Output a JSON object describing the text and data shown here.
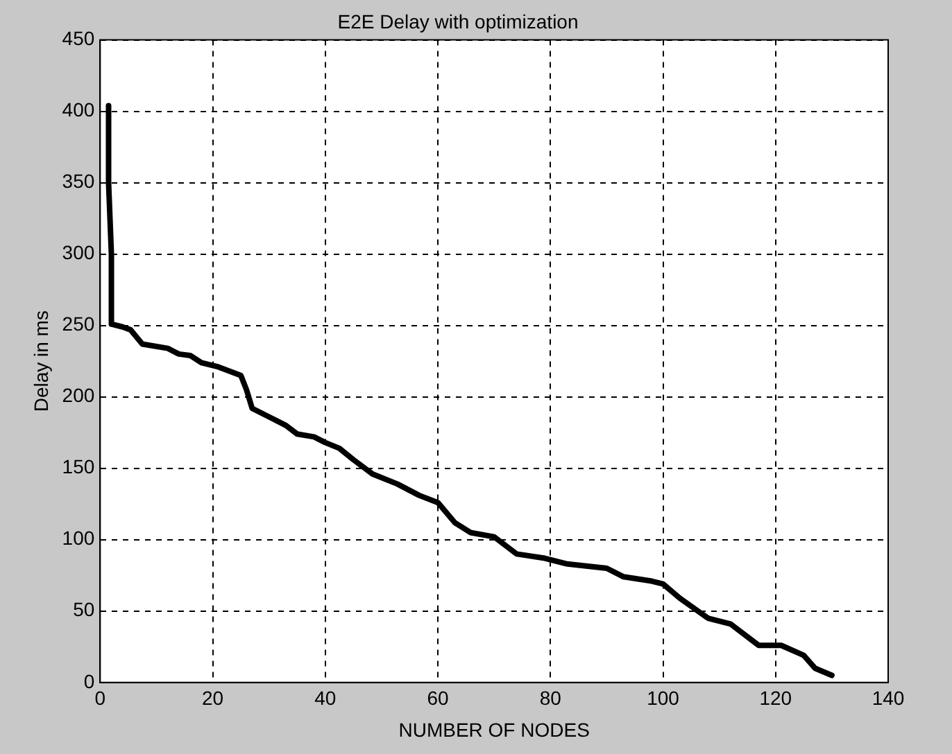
{
  "chart_data": {
    "type": "line",
    "title": "E2E Delay with optimization",
    "xlabel": "NUMBER OF NODES",
    "ylabel": "Delay in ms",
    "xlim": [
      0,
      140
    ],
    "xticks": [
      0,
      20,
      40,
      60,
      80,
      100,
      120,
      140
    ],
    "ylim": [
      0,
      450
    ],
    "yticks": [
      0,
      50,
      100,
      150,
      200,
      250,
      300,
      350,
      400,
      450
    ],
    "grid": true,
    "legend": false,
    "marker": "none",
    "line_style": "solid",
    "series": [
      {
        "color": "#000000",
        "x": [
          1.5,
          1.5,
          2,
          2,
          4,
          5.4,
          7.5,
          12,
          14,
          16,
          18,
          21,
          25,
          26,
          27,
          30,
          33,
          35,
          38,
          40,
          42.5,
          45,
          48.4,
          52.8,
          56.7,
          60,
          63,
          65.8,
          70,
          74,
          79,
          83,
          90,
          93,
          98,
          100,
          103,
          108,
          112,
          117,
          121,
          125,
          127,
          130
        ],
        "values": [
          404,
          350,
          300,
          251,
          249,
          247,
          237,
          234,
          230,
          229,
          224,
          221,
          215,
          205,
          192,
          186,
          180,
          174,
          172,
          168,
          164,
          156,
          146,
          139,
          131,
          126,
          112,
          105,
          102,
          90,
          87,
          83,
          80,
          74,
          71,
          69,
          59,
          45,
          41,
          26,
          26,
          19,
          10,
          5
        ]
      }
    ]
  }
}
